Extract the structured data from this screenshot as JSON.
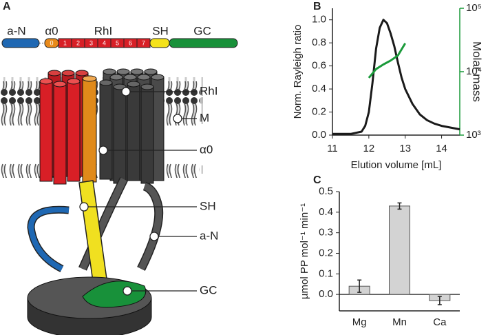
{
  "panel_labels": [
    "A",
    "B",
    "C"
  ],
  "diagram": {
    "domains": {
      "a_n": "a-N",
      "alpha0": "α0",
      "rhi": "RhI",
      "sh": "SH",
      "gc": "GC",
      "segments": [
        "0",
        "1",
        "2",
        "3",
        "4",
        "5",
        "6",
        "7"
      ]
    },
    "callouts": [
      "RhI",
      "M",
      "α0",
      "SH",
      "a-N",
      "GC"
    ]
  },
  "chart_data": [
    {
      "type": "line",
      "x_label": "Elution volume [mL]",
      "y_label": "Norm. Rayleigh ratio",
      "y2_label": "Molar mass",
      "xlim": [
        11,
        14.5
      ],
      "xticks": [
        11,
        12,
        13,
        14
      ],
      "ylim": [
        0,
        1.1
      ],
      "yticks": [
        {
          "value": 0,
          "label": "0.0"
        },
        {
          "value": 0.2,
          "label": "0.2"
        },
        {
          "value": 0.4,
          "label": "0.4"
        },
        {
          "value": 0.6,
          "label": "0.6"
        },
        {
          "value": 0.8,
          "label": "0.8"
        },
        {
          "value": 1,
          "label": "1.0"
        }
      ],
      "y2lim": [
        1000,
        100000
      ],
      "y2log": true,
      "y2ticks": [
        {
          "value": 1000,
          "label": "10³"
        },
        {
          "value": 10000,
          "label": "10⁴"
        },
        {
          "value": 100000,
          "label": "10⁵"
        }
      ],
      "series": [
        {
          "color": "#1a1a1a",
          "x": [
            11,
            11.5,
            11.8,
            11.9,
            12.0,
            12.1,
            12.2,
            12.3,
            12.4,
            12.5,
            12.6,
            12.7,
            12.8,
            12.9,
            13.0,
            13.2,
            13.4,
            13.6,
            13.8,
            14.0,
            14.5
          ],
          "values": [
            0.01,
            0.01,
            0.03,
            0.08,
            0.2,
            0.45,
            0.75,
            0.93,
            1.0,
            0.97,
            0.88,
            0.77,
            0.63,
            0.5,
            0.4,
            0.27,
            0.18,
            0.13,
            0.1,
            0.08,
            0.05
          ]
        },
        {
          "color": "#1a9a3a",
          "axis": "y2",
          "x": [
            12.0,
            12.2,
            12.4,
            12.6,
            12.8,
            13.0
          ],
          "values": [
            8000,
            11000,
            13000,
            15000,
            18000,
            28000
          ]
        }
      ]
    },
    {
      "type": "bar",
      "y_label": "µmol PP mol⁻¹ min⁻¹",
      "categories": [
        "Mg",
        "Mn",
        "Ca"
      ],
      "values": [
        0.04,
        0.43,
        -0.03
      ],
      "errors": [
        0.03,
        0.015,
        0.02
      ],
      "color": "#d3d3d3",
      "ylim": [
        -0.08,
        0.5
      ],
      "yticks": [
        {
          "value": 0,
          "label": "0.0"
        },
        0.1,
        0.2,
        0.3,
        0.4,
        0.5
      ]
    }
  ]
}
